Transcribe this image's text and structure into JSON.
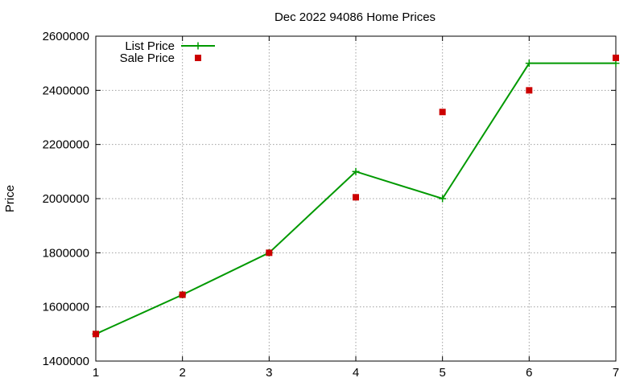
{
  "chart_data": {
    "type": "line",
    "title": "Dec 2022 94086 Home Prices",
    "xlabel": "",
    "ylabel": "Price",
    "x": [
      1,
      2,
      3,
      4,
      5,
      6,
      7
    ],
    "xlim": [
      1,
      7
    ],
    "ylim": [
      1400000,
      2600000
    ],
    "x_ticks": [
      "1",
      "2",
      "3",
      "4",
      "5",
      "6",
      "7"
    ],
    "y_ticks": [
      "1400000",
      "1600000",
      "1800000",
      "2000000",
      "2200000",
      "2400000",
      "2600000"
    ],
    "grid": true,
    "legend_position": "top-left",
    "series": [
      {
        "name": "List Price",
        "style": "line-with-plus-markers",
        "color": "#009900",
        "values": [
          1500000,
          1645000,
          1800000,
          2100000,
          2000000,
          2500000,
          2500000
        ]
      },
      {
        "name": "Sale Price",
        "style": "square-markers",
        "color": "#cc0000",
        "values": [
          1500000,
          1645000,
          1800000,
          2005000,
          2320000,
          2400000,
          2520000
        ]
      }
    ]
  }
}
